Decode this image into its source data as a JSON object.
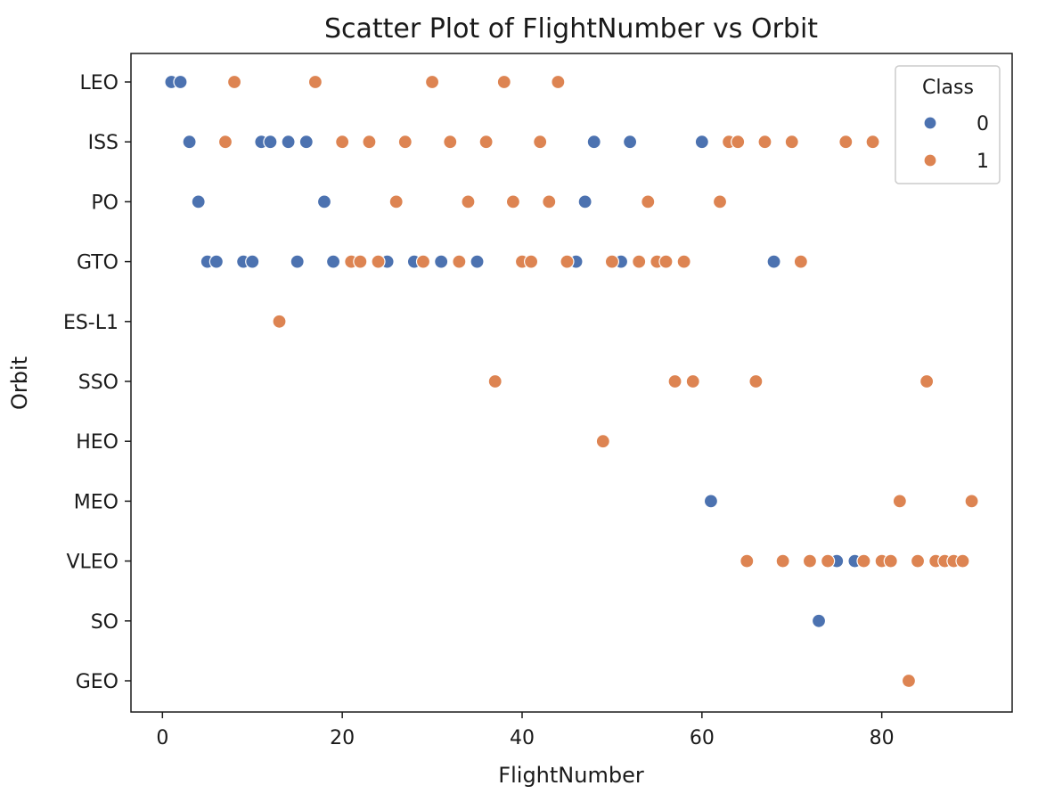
{
  "chart_data": {
    "type": "scatter",
    "title": "Scatter Plot of FlightNumber vs Orbit",
    "xlabel": "FlightNumber",
    "ylabel": "Orbit",
    "xlim": [
      -3.5,
      94.5
    ],
    "xticks": [
      0,
      20,
      40,
      60,
      80
    ],
    "categories": [
      "LEO",
      "ISS",
      "PO",
      "GTO",
      "ES-L1",
      "SSO",
      "HEO",
      "MEO",
      "VLEO",
      "SO",
      "GEO"
    ],
    "grid": false,
    "legend": {
      "title": "Class",
      "position": "top-right",
      "entries": [
        {
          "label": "0",
          "color": "#4c72b0"
        },
        {
          "label": "1",
          "color": "#dd8452"
        }
      ]
    },
    "series": [
      {
        "class": "0",
        "color": "#4c72b0",
        "points": [
          [
            1,
            "LEO"
          ],
          [
            2,
            "LEO"
          ],
          [
            3,
            "ISS"
          ],
          [
            11,
            "ISS"
          ],
          [
            12,
            "ISS"
          ],
          [
            14,
            "ISS"
          ],
          [
            16,
            "ISS"
          ],
          [
            48,
            "ISS"
          ],
          [
            52,
            "ISS"
          ],
          [
            60,
            "ISS"
          ],
          [
            4,
            "PO"
          ],
          [
            18,
            "PO"
          ],
          [
            47,
            "PO"
          ],
          [
            5,
            "GTO"
          ],
          [
            6,
            "GTO"
          ],
          [
            9,
            "GTO"
          ],
          [
            10,
            "GTO"
          ],
          [
            15,
            "GTO"
          ],
          [
            19,
            "GTO"
          ],
          [
            25,
            "GTO"
          ],
          [
            28,
            "GTO"
          ],
          [
            31,
            "GTO"
          ],
          [
            35,
            "GTO"
          ],
          [
            46,
            "GTO"
          ],
          [
            51,
            "GTO"
          ],
          [
            68,
            "GTO"
          ],
          [
            61,
            "MEO"
          ],
          [
            75,
            "VLEO"
          ],
          [
            77,
            "VLEO"
          ],
          [
            73,
            "SO"
          ]
        ]
      },
      {
        "class": "1",
        "color": "#dd8452",
        "points": [
          [
            8,
            "LEO"
          ],
          [
            17,
            "LEO"
          ],
          [
            30,
            "LEO"
          ],
          [
            38,
            "LEO"
          ],
          [
            44,
            "LEO"
          ],
          [
            7,
            "ISS"
          ],
          [
            20,
            "ISS"
          ],
          [
            23,
            "ISS"
          ],
          [
            27,
            "ISS"
          ],
          [
            32,
            "ISS"
          ],
          [
            36,
            "ISS"
          ],
          [
            42,
            "ISS"
          ],
          [
            63,
            "ISS"
          ],
          [
            64,
            "ISS"
          ],
          [
            67,
            "ISS"
          ],
          [
            70,
            "ISS"
          ],
          [
            76,
            "ISS"
          ],
          [
            79,
            "ISS"
          ],
          [
            26,
            "PO"
          ],
          [
            34,
            "PO"
          ],
          [
            39,
            "PO"
          ],
          [
            43,
            "PO"
          ],
          [
            54,
            "PO"
          ],
          [
            62,
            "PO"
          ],
          [
            21,
            "GTO"
          ],
          [
            22,
            "GTO"
          ],
          [
            24,
            "GTO"
          ],
          [
            29,
            "GTO"
          ],
          [
            33,
            "GTO"
          ],
          [
            40,
            "GTO"
          ],
          [
            41,
            "GTO"
          ],
          [
            45,
            "GTO"
          ],
          [
            50,
            "GTO"
          ],
          [
            53,
            "GTO"
          ],
          [
            55,
            "GTO"
          ],
          [
            56,
            "GTO"
          ],
          [
            58,
            "GTO"
          ],
          [
            71,
            "GTO"
          ],
          [
            13,
            "ES-L1"
          ],
          [
            37,
            "SSO"
          ],
          [
            57,
            "SSO"
          ],
          [
            59,
            "SSO"
          ],
          [
            66,
            "SSO"
          ],
          [
            85,
            "SSO"
          ],
          [
            49,
            "HEO"
          ],
          [
            82,
            "MEO"
          ],
          [
            90,
            "MEO"
          ],
          [
            65,
            "VLEO"
          ],
          [
            69,
            "VLEO"
          ],
          [
            72,
            "VLEO"
          ],
          [
            74,
            "VLEO"
          ],
          [
            78,
            "VLEO"
          ],
          [
            80,
            "VLEO"
          ],
          [
            81,
            "VLEO"
          ],
          [
            84,
            "VLEO"
          ],
          [
            86,
            "VLEO"
          ],
          [
            87,
            "VLEO"
          ],
          [
            88,
            "VLEO"
          ],
          [
            89,
            "VLEO"
          ],
          [
            83,
            "GEO"
          ]
        ]
      }
    ]
  }
}
